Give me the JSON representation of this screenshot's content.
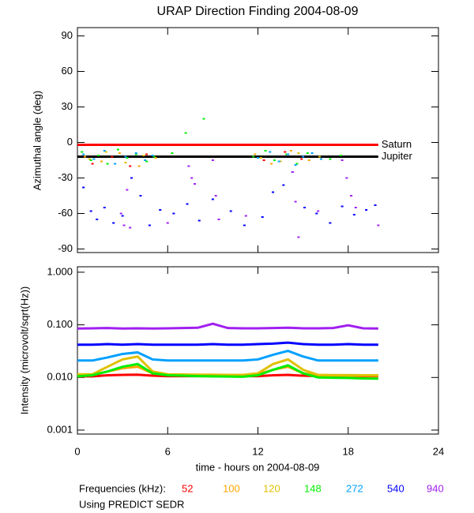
{
  "chart_data": [
    {
      "type": "scatter",
      "title": "URAP Direction Finding  2004-08-09",
      "ylabel": "Azimuthal angle (deg)",
      "xlim": [
        0,
        24
      ],
      "ylim": [
        -93,
        97
      ],
      "yticks": [
        -90,
        -60,
        -30,
        0,
        30,
        60,
        90
      ],
      "reference_lines": [
        {
          "name": "Saturn",
          "value": -2,
          "color": "#ff0000",
          "x_end": 20
        },
        {
          "name": "Jupiter",
          "value": -12,
          "color": "#000000",
          "x_end": 20
        }
      ],
      "series": [
        {
          "color": "#ff0000",
          "x": [
            1.0,
            2.3,
            3.5,
            4.6,
            12.4,
            13.8,
            14.9
          ],
          "values": [
            -18,
            -12,
            -20,
            -10,
            -15,
            -8,
            -14
          ]
        },
        {
          "color": "#ffa500",
          "x": [
            0.5,
            1.6,
            2.8,
            4.1,
            5.2,
            11.8,
            12.9,
            14.2,
            15.4
          ],
          "values": [
            -12,
            -16,
            -9,
            -20,
            -13,
            -10,
            -18,
            -7,
            -15
          ]
        },
        {
          "color": "#e0c000",
          "x": [
            0.8,
            1.9,
            3.2,
            4.4,
            12.2,
            13.5,
            14.7,
            16.1
          ],
          "values": [
            -14,
            -8,
            -17,
            -11,
            -13,
            -16,
            -9,
            -12
          ]
        },
        {
          "color": "#00ee00",
          "x": [
            0.3,
            0.9,
            1.4,
            2.0,
            2.7,
            3.3,
            3.9,
            4.6,
            5.1,
            6.3,
            7.2,
            8.4,
            11.7,
            12.5,
            13.1,
            13.9,
            14.6,
            15.3,
            16.8,
            17.5
          ],
          "values": [
            -8,
            -15,
            -11,
            -18,
            -6,
            -13,
            -10,
            -16,
            -12,
            -9,
            8,
            20,
            -12,
            -7,
            -15,
            -10,
            -18,
            -9,
            -14,
            -11
          ]
        },
        {
          "color": "#00a0ff",
          "x": [
            0.4,
            1.1,
            1.8,
            2.5,
            3.2,
            3.9,
            4.5,
            5.0,
            12.0,
            12.8,
            13.4,
            14.0,
            14.5,
            15.0,
            15.6,
            16.2
          ],
          "values": [
            -10,
            -14,
            -7,
            -18,
            -12,
            -9,
            -15,
            -11,
            -13,
            -8,
            -16,
            -10,
            -19,
            -12,
            -9,
            -14
          ]
        },
        {
          "color": "#0000ff",
          "x": [
            0.4,
            0.9,
            1.3,
            1.8,
            2.4,
            3.0,
            3.6,
            4.2,
            4.8,
            5.5,
            6.4,
            7.3,
            8.1,
            9.0,
            10.2,
            11.1,
            12.3,
            13.0,
            13.7,
            14.3,
            15.1,
            15.9,
            16.8,
            17.6,
            18.4,
            19.2,
            19.8
          ],
          "values": [
            -38,
            -58,
            -65,
            -55,
            -68,
            -62,
            -30,
            -45,
            -70,
            -57,
            -60,
            -52,
            -66,
            -48,
            -58,
            -70,
            -63,
            -42,
            -36,
            -25,
            -55,
            -60,
            -68,
            -54,
            -61,
            -57,
            -53
          ]
        },
        {
          "color": "#a020f0",
          "x": [
            2.9,
            3.1,
            3.3,
            3.5,
            7.4,
            7.6,
            7.8,
            9.0,
            9.2,
            9.4,
            14.3,
            14.5,
            14.7,
            17.6,
            17.9,
            18.2,
            18.5,
            6.0,
            11.2,
            16.0,
            20.0
          ],
          "values": [
            -60,
            -70,
            -40,
            -72,
            -20,
            -30,
            -35,
            -15,
            -45,
            -65,
            -25,
            -50,
            -80,
            -15,
            -30,
            -45,
            -55,
            -68,
            -62,
            -58,
            -70
          ]
        }
      ]
    },
    {
      "type": "line",
      "ylabel": "Intensity (microvolt/sqrt(Hz))",
      "xlabel": "time - hours on 2004-08-09",
      "log_scale": true,
      "xlim": [
        0,
        24
      ],
      "xticks": [
        0,
        6,
        12,
        18,
        24
      ],
      "ylim": [
        0.00084,
        1.27
      ],
      "yticks": [
        {
          "value": 1,
          "label": "1.000"
        },
        {
          "value": 0.1,
          "label": "0.100"
        },
        {
          "value": 0.01,
          "label": "0.010"
        },
        {
          "value": 0.001,
          "label": "0.001"
        }
      ],
      "legend_title": "Frequencies (kHz):",
      "footnote": "Using PREDICT SEDR",
      "x": [
        0,
        1,
        2,
        3,
        4,
        5,
        6,
        7,
        8,
        9,
        10,
        11,
        12,
        13,
        14,
        15,
        16,
        17,
        18,
        19,
        20
      ],
      "series": [
        {
          "name": "52",
          "color": "#ff0000",
          "values": [
            0.0105,
            0.0105,
            0.011,
            0.0112,
            0.0113,
            0.0108,
            0.0106,
            0.0106,
            0.0106,
            0.0106,
            0.0106,
            0.0106,
            0.0106,
            0.011,
            0.0112,
            0.0108,
            0.0106,
            0.0106,
            0.0106,
            0.0106,
            0.0106
          ]
        },
        {
          "name": "100",
          "color": "#ffa500",
          "values": [
            0.0112,
            0.0112,
            0.013,
            0.015,
            0.016,
            0.012,
            0.0111,
            0.0111,
            0.011,
            0.011,
            0.011,
            0.011,
            0.0115,
            0.014,
            0.016,
            0.012,
            0.0109,
            0.0109,
            0.0108,
            0.0108,
            0.0108
          ]
        },
        {
          "name": "120",
          "color": "#e0c000",
          "values": [
            0.0115,
            0.0115,
            0.016,
            0.022,
            0.025,
            0.013,
            0.0115,
            0.0114,
            0.0113,
            0.0113,
            0.0112,
            0.0112,
            0.012,
            0.018,
            0.022,
            0.014,
            0.0112,
            0.0111,
            0.0111,
            0.011,
            0.011
          ]
        },
        {
          "name": "148",
          "color": "#00ee00",
          "values": [
            0.0105,
            0.011,
            0.013,
            0.016,
            0.018,
            0.012,
            0.011,
            0.0108,
            0.0106,
            0.0105,
            0.0104,
            0.0103,
            0.011,
            0.014,
            0.017,
            0.012,
            0.01,
            0.0099,
            0.0098,
            0.0096,
            0.0095
          ]
        },
        {
          "name": "272",
          "color": "#00a0ff",
          "values": [
            0.021,
            0.021,
            0.024,
            0.028,
            0.03,
            0.022,
            0.021,
            0.021,
            0.021,
            0.021,
            0.021,
            0.021,
            0.022,
            0.027,
            0.032,
            0.025,
            0.021,
            0.021,
            0.021,
            0.021,
            0.021
          ]
        },
        {
          "name": "540",
          "color": "#0000ff",
          "values": [
            0.042,
            0.042,
            0.043,
            0.042,
            0.043,
            0.042,
            0.042,
            0.042,
            0.042,
            0.043,
            0.042,
            0.042,
            0.043,
            0.044,
            0.046,
            0.043,
            0.042,
            0.042,
            0.043,
            0.042,
            0.042
          ]
        },
        {
          "name": "940",
          "color": "#a020f0",
          "values": [
            0.085,
            0.086,
            0.087,
            0.085,
            0.086,
            0.085,
            0.086,
            0.087,
            0.088,
            0.105,
            0.087,
            0.086,
            0.086,
            0.087,
            0.088,
            0.086,
            0.086,
            0.087,
            0.098,
            0.086,
            0.085
          ]
        }
      ]
    }
  ]
}
